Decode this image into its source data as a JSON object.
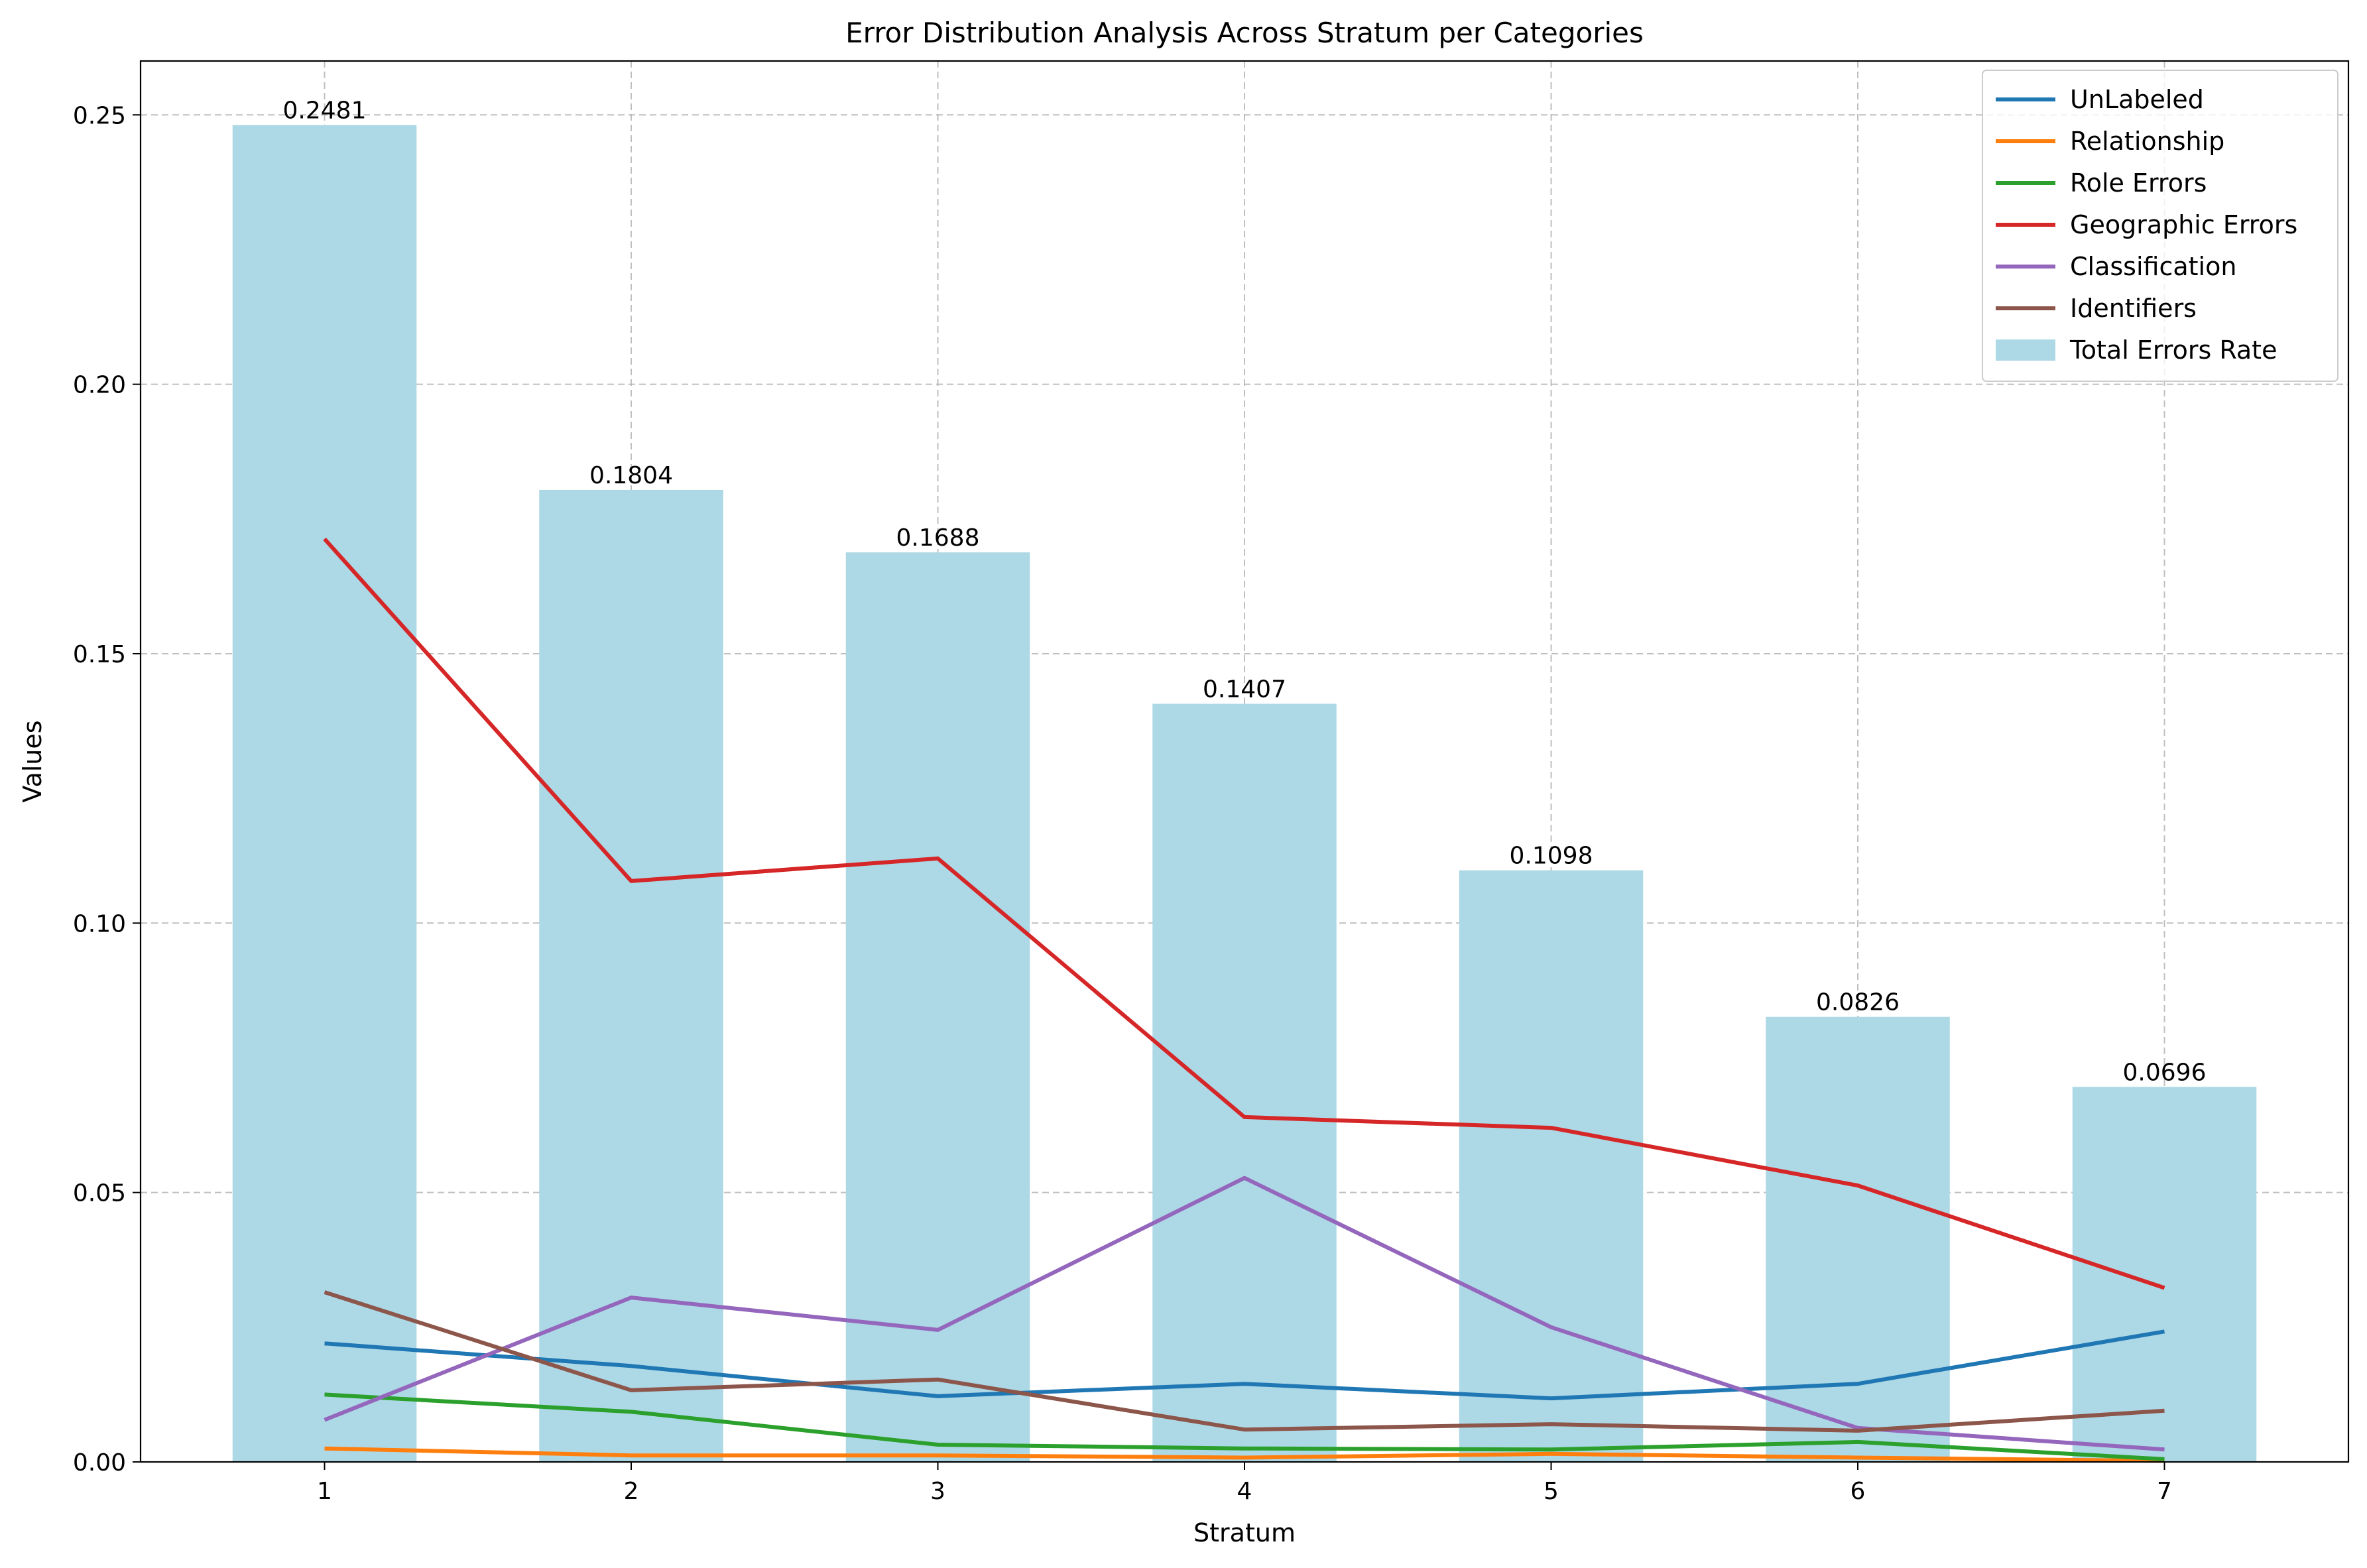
{
  "chart_data": {
    "type": "bar+line",
    "title": "Error Distribution Analysis Across Stratum per Categories",
    "xlabel": "Stratum",
    "ylabel": "Values",
    "categories": [
      "1",
      "2",
      "3",
      "4",
      "5",
      "6",
      "7"
    ],
    "ylim": [
      0,
      0.26
    ],
    "yticks": [
      "0.00",
      "0.05",
      "0.10",
      "0.15",
      "0.20",
      "0.25"
    ],
    "ytick_values": [
      0,
      0.05,
      0.1,
      0.15,
      0.2,
      0.25
    ],
    "grid": true,
    "legend_position": "top-right",
    "bars": {
      "name": "Total Errors Rate",
      "color": "#add8e6",
      "values": [
        0.2481,
        0.1804,
        0.1688,
        0.1407,
        0.1098,
        0.0826,
        0.0696
      ],
      "labels": [
        "0.2481",
        "0.1804",
        "0.1688",
        "0.1407",
        "0.1098",
        "0.0826",
        "0.0696"
      ]
    },
    "series": [
      {
        "name": "UnLabeled",
        "color": "#1f77b4",
        "values": [
          0.022,
          0.0178,
          0.0122,
          0.0145,
          0.0118,
          0.0145,
          0.0242
        ]
      },
      {
        "name": "Relationship",
        "color": "#ff7f0e",
        "values": [
          0.0025,
          0.0012,
          0.0012,
          0.0008,
          0.0015,
          0.0008,
          0.0002
        ]
      },
      {
        "name": "Role Errors",
        "color": "#2ca02c",
        "values": [
          0.0125,
          0.0093,
          0.0032,
          0.0025,
          0.0023,
          0.0037,
          0.0005
        ]
      },
      {
        "name": "Geographic Errors",
        "color": "#d62728",
        "values": [
          0.1713,
          0.1078,
          0.112,
          0.064,
          0.062,
          0.0513,
          0.0323
        ]
      },
      {
        "name": "Classification",
        "color": "#9467bd",
        "values": [
          0.0078,
          0.0305,
          0.0245,
          0.0527,
          0.025,
          0.0063,
          0.0023
        ]
      },
      {
        "name": "Identifiers",
        "color": "#8c564b",
        "values": [
          0.0315,
          0.0133,
          0.0153,
          0.006,
          0.007,
          0.0058,
          0.0095
        ]
      }
    ]
  }
}
